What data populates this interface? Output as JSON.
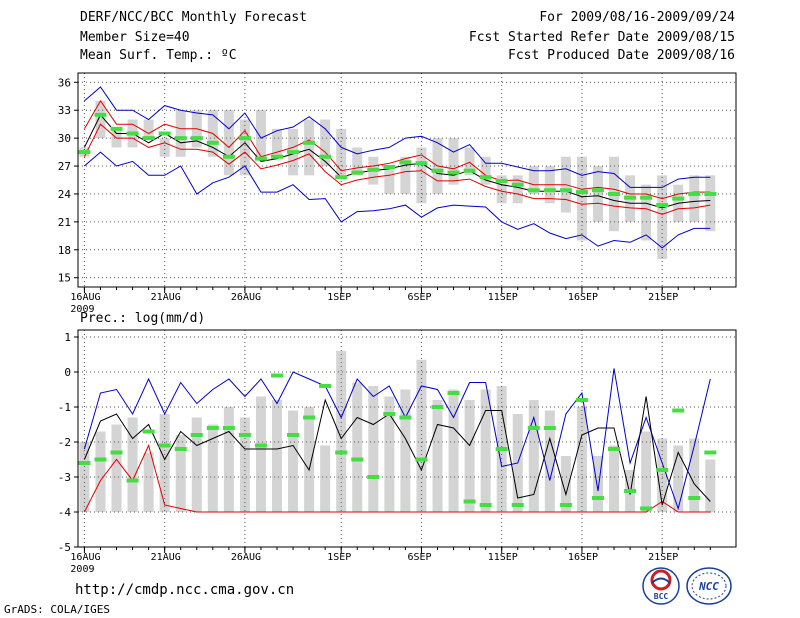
{
  "header": {
    "title": "DERF/NCC/BCC Monthly Forecast",
    "member_size": "Member Size=40",
    "variable1": "Mean Surf. Temp.: ºC",
    "period": "For 2009/08/16-2009/09/24",
    "start_date": "Fcst Started Refer Date 2009/08/15",
    "produced_date": "Fcst Produced Date 2009/08/16"
  },
  "footer": {
    "url": "http://cmdp.ncc.cma.gov.cn",
    "grads": "GrADS: COLA/IGES",
    "logo_bcc": "BCC",
    "logo_ncc": "NCC"
  },
  "colors": {
    "bars": "#d4d4d4",
    "mean_line": "#000000",
    "std_lines": "#e00000",
    "extreme_lines": "#0000cc",
    "markers": "#44dd44",
    "grid": "#555555"
  },
  "chart_data": [
    {
      "type": "line",
      "title": "Mean Surf. Temp.: ºC",
      "ylim": [
        14,
        37
      ],
      "yticks": [
        15,
        18,
        21,
        24,
        27,
        30,
        33,
        36
      ],
      "xlabel": "",
      "ylabel": "",
      "x_ticks": [
        {
          "day": 1,
          "label": "16AUG",
          "sub": "2009"
        },
        {
          "day": 6,
          "label": "21AUG"
        },
        {
          "day": 11,
          "label": "26AUG"
        },
        {
          "day": 17,
          "label": "1SEP"
        },
        {
          "day": 22,
          "label": "6SEP"
        },
        {
          "day": 27,
          "label": "11SEP"
        },
        {
          "day": 32,
          "label": "16SEP"
        },
        {
          "day": 37,
          "label": "21SEP"
        }
      ],
      "days": 40,
      "bars_low": [
        28,
        30,
        29,
        29,
        30,
        28,
        28,
        29,
        28,
        26,
        26,
        28,
        28,
        26,
        26,
        27,
        26,
        26,
        25,
        24,
        24,
        23,
        24,
        25,
        26,
        25,
        23,
        23,
        24,
        23,
        22,
        19,
        21,
        20,
        21,
        19,
        17,
        21,
        21,
        20
      ],
      "bars_high": [
        29,
        34,
        31,
        32,
        32,
        30,
        33,
        33,
        33,
        33,
        32,
        33,
        31,
        31,
        32,
        32,
        31,
        29,
        28,
        27,
        28,
        29,
        30,
        30,
        29,
        28,
        26,
        26,
        27,
        27,
        28,
        28,
        27,
        28,
        26,
        25,
        26,
        25,
        26,
        26
      ],
      "upper_extreme": [
        34,
        35.5,
        33,
        33,
        32,
        33.5,
        33,
        32.7,
        32.5,
        31,
        32.7,
        30,
        30.8,
        31.2,
        32.3,
        31,
        29,
        28.3,
        28.7,
        29,
        30,
        30.2,
        29.5,
        28.5,
        29.3,
        27.3,
        27.3,
        26.9,
        26.5,
        26.5,
        26.7,
        26,
        26.4,
        26.2,
        24.7,
        24.7,
        24.7,
        25.6,
        25.8,
        25.8
      ],
      "upper_std": [
        31,
        34,
        31.5,
        31.5,
        30.5,
        31.5,
        31,
        31,
        30.5,
        29,
        30.8,
        28,
        28.5,
        29,
        29.8,
        28.5,
        26.5,
        26.8,
        27,
        27.3,
        27.8,
        28.2,
        27,
        26.7,
        27.4,
        26,
        25.4,
        25.5,
        25,
        25,
        25,
        24.5,
        24.7,
        24.5,
        24,
        24,
        23.5,
        24,
        24.2,
        24.2
      ],
      "mean": [
        29,
        32.5,
        30.5,
        30.5,
        29.5,
        30.5,
        29.5,
        29.7,
        29,
        28,
        29.5,
        27.5,
        27.8,
        28.3,
        28.8,
        27.5,
        25.8,
        26.3,
        26.5,
        26.7,
        27.1,
        27.3,
        26.2,
        26,
        26.5,
        25.5,
        25,
        24.7,
        24.3,
        24.3,
        24.3,
        23.7,
        23.8,
        23.3,
        23,
        23,
        22.5,
        23,
        23.2,
        23.3
      ],
      "lower_std": [
        28,
        31.5,
        30,
        30,
        29,
        29.5,
        28.8,
        28.8,
        28.5,
        27.2,
        28.5,
        26.7,
        27.1,
        27.6,
        28.3,
        26.4,
        25,
        25.5,
        25.8,
        26,
        26.4,
        26.5,
        25.4,
        25.4,
        25.6,
        24.8,
        24.3,
        24,
        23.5,
        23.5,
        23.4,
        22.9,
        23,
        22.7,
        22.5,
        22.4,
        21.8,
        22.4,
        22.5,
        22.8
      ],
      "lower_extreme": [
        27,
        28.5,
        27,
        27.5,
        26,
        26,
        27,
        24,
        25.2,
        25.8,
        27,
        24.2,
        24.2,
        25,
        23.4,
        23.5,
        21,
        22.1,
        22.2,
        22.4,
        22.8,
        21.5,
        22.5,
        22.8,
        22.7,
        22.6,
        21,
        20.2,
        20.8,
        19.8,
        19.2,
        19.6,
        18.4,
        19,
        18.8,
        19.6,
        18.2,
        19.6,
        20.3,
        20.3
      ],
      "markers": [
        28.5,
        32.5,
        31,
        30.5,
        30,
        30.5,
        30,
        30,
        29.5,
        28,
        30,
        27.8,
        28,
        28.5,
        29.5,
        28,
        25.8,
        26.3,
        26.6,
        26.9,
        27.4,
        27.3,
        26.5,
        26.3,
        26.5,
        25.8,
        25.4,
        25,
        24.4,
        24.4,
        24.4,
        24.2,
        24.4,
        24,
        23.6,
        23.6,
        22.8,
        23.5,
        24,
        24
      ]
    },
    {
      "type": "line",
      "title": "Prec.: log(mm/d)",
      "ylim": [
        -5,
        1.2
      ],
      "yticks": [
        -5,
        -4,
        -3,
        -2,
        -1,
        0,
        1
      ],
      "xlabel": "",
      "ylabel": "",
      "days": 40,
      "bar_low": -4,
      "bar_tops": [
        -2,
        -1.7,
        -1.5,
        -1.3,
        -2.3,
        -1.2,
        -1.8,
        -1.3,
        -1.5,
        -1,
        -1.3,
        -0.7,
        -0.8,
        -1.1,
        -1,
        -2.1,
        0.6,
        -0.3,
        -0.4,
        -0.7,
        -0.5,
        0.35,
        -0.8,
        -0.5,
        -0.8,
        -0.5,
        -0.4,
        -1.2,
        -0.8,
        -1.1,
        -2.4,
        -1,
        -2.4,
        -2.1,
        -2.8,
        -1.7,
        -1.9,
        -2.1,
        -1.9,
        -2.5
      ],
      "upper_extreme": [
        -2.2,
        -0.6,
        -0.5,
        -1.2,
        -0.2,
        -1.2,
        -0.3,
        -0.9,
        -0.5,
        -0.2,
        -0.7,
        -0.2,
        -0.9,
        0,
        -0.2,
        -0.4,
        -1.3,
        -0.2,
        -0.7,
        -0.4,
        -1.3,
        -0.4,
        -0.5,
        -1.3,
        -0.3,
        -0.3,
        -2.7,
        -2.6,
        -1.3,
        -3.1,
        -1.2,
        -0.6,
        -3.4,
        0.1,
        -2.6,
        -1.3,
        -2.6,
        -3.9,
        -2.1,
        -0.2
      ],
      "mean": [
        -2.5,
        -1.4,
        -1.2,
        -1.9,
        -1.5,
        -2.5,
        -1.7,
        -2.1,
        -1.9,
        -1.7,
        -2.2,
        -2.2,
        -2.2,
        -2.1,
        -2.8,
        -0.8,
        -1.9,
        -1.3,
        -1.5,
        -1.2,
        -1.9,
        -2.8,
        -1.5,
        -1.6,
        -2.1,
        -1.1,
        -1.1,
        -3.6,
        -3.5,
        -1.9,
        -3.5,
        -1.8,
        -1.6,
        -1.6,
        -3.5,
        -0.7,
        -3.8,
        -2.3,
        -3.2,
        -3.7
      ],
      "lower_red": [
        -4,
        -3.1,
        -2.5,
        -3.1,
        -2.1,
        -3.8,
        -3.9,
        -4,
        -4,
        -4,
        -4,
        -4,
        -4,
        -4,
        -4,
        -4,
        -4,
        -4,
        -4,
        -4,
        -4,
        -4,
        -4,
        -4,
        -4,
        -4,
        -4,
        -4,
        -4,
        -4,
        -4,
        -4,
        -4,
        -4,
        -4,
        -4,
        -3.7,
        -4,
        -4,
        -4
      ],
      "markers": [
        -2.6,
        -2.5,
        -2.3,
        -3.1,
        -1.7,
        -2.1,
        -2.2,
        -1.8,
        -1.6,
        -1.6,
        -1.8,
        -2.1,
        -0.1,
        -1.8,
        -1.3,
        -0.4,
        -2.3,
        -2.5,
        -3,
        -1.2,
        -1.3,
        -2.5,
        -1,
        -0.6,
        -3.7,
        -3.8,
        -2.2,
        -3.8,
        -1.6,
        -1.6,
        -3.8,
        -0.8,
        -3.6,
        -2.2,
        -3.4,
        -3.9,
        -2.8,
        -1.1,
        -3.6,
        -2.3
      ]
    }
  ]
}
